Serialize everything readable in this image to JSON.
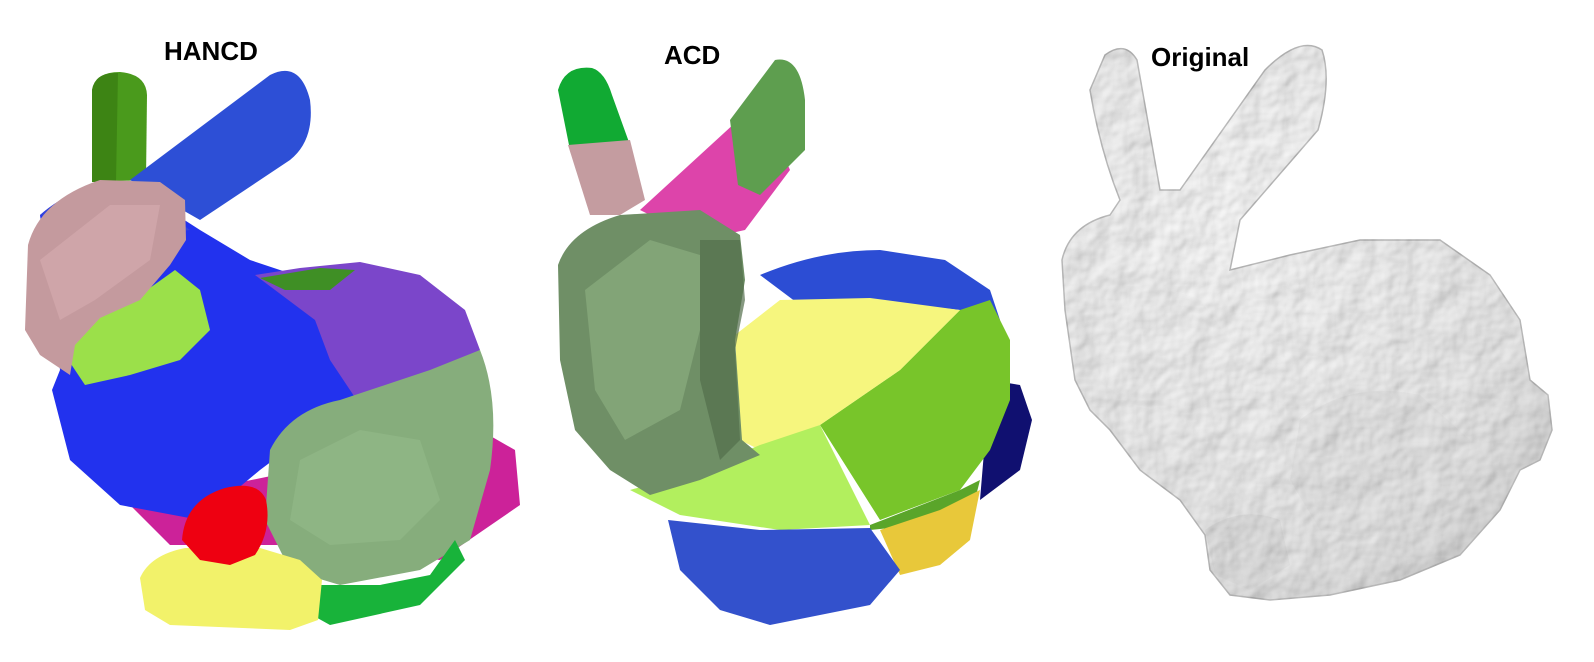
{
  "panels": [
    {
      "id": "hancd",
      "label": "HANCD"
    },
    {
      "id": "acd",
      "label": "ACD"
    },
    {
      "id": "original",
      "label": "Original"
    }
  ],
  "colors": {
    "blue": "#2233ee",
    "green": "#3f8f16",
    "pink_gray": "#c49a9e",
    "light_green": "#9be04a",
    "purple": "#7a45c9",
    "sage": "#86ad7c",
    "magenta": "#cc2299",
    "red": "#ee0011",
    "yellow": "#f2f26a",
    "bright_green": "#18b33a",
    "acd_dark_sage": "#6f8f66",
    "acd_yellow": "#f6f67e",
    "acd_lime": "#78c52a",
    "acd_blue": "#3351cc",
    "acd_navy": "#101070",
    "acd_pink": "#dd44aa",
    "gray_white": "#f2f2f2"
  }
}
